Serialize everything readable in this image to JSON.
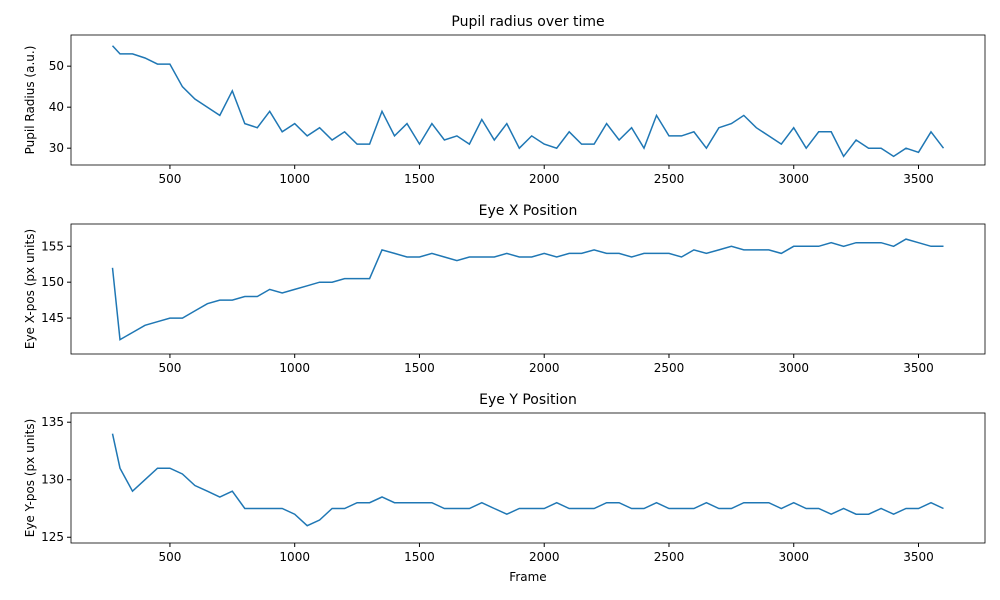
{
  "chart_data": [
    {
      "type": "line",
      "title": "Pupil radius over time",
      "ylabel": "Pupil Radius (a.u.)",
      "x": [
        270,
        300,
        350,
        400,
        450,
        500,
        550,
        600,
        650,
        700,
        750,
        800,
        850,
        900,
        950,
        1000,
        1050,
        1100,
        1150,
        1200,
        1250,
        1300,
        1350,
        1400,
        1450,
        1500,
        1550,
        1600,
        1650,
        1700,
        1750,
        1800,
        1850,
        1900,
        1950,
        2000,
        2050,
        2100,
        2150,
        2200,
        2250,
        2300,
        2350,
        2400,
        2450,
        2500,
        2550,
        2600,
        2650,
        2700,
        2750,
        2800,
        2850,
        2900,
        2950,
        3000,
        3050,
        3100,
        3150,
        3200,
        3250,
        3300,
        3350,
        3400,
        3450,
        3500,
        3550,
        3600
      ],
      "values": [
        55,
        53,
        53,
        52,
        50.5,
        50.5,
        45,
        42,
        40,
        38,
        44,
        36,
        35,
        39,
        34,
        36,
        33,
        35,
        32,
        34,
        31,
        31,
        39,
        33,
        36,
        31,
        36,
        32,
        33,
        31,
        37,
        32,
        36,
        30,
        33,
        31,
        30,
        34,
        31,
        31,
        36,
        32,
        35,
        30,
        38,
        33,
        33,
        34,
        30,
        35,
        36,
        38,
        35,
        33,
        31,
        35,
        30,
        34,
        34,
        28,
        32,
        30,
        30,
        28,
        30,
        29,
        34,
        30
      ],
      "color": "#1f77b4",
      "xlim": [
        103.5,
        3766.5
      ],
      "xticks": [
        500,
        1000,
        1500,
        2000,
        2500,
        3000,
        3500
      ],
      "ylim": [
        25.9,
        57.6
      ],
      "yticks": [
        30,
        40,
        50
      ]
    },
    {
      "type": "line",
      "title": "Eye X Position",
      "ylabel": "Eye X-pos (px units)",
      "x": [
        270,
        300,
        350,
        400,
        450,
        500,
        550,
        600,
        650,
        700,
        750,
        800,
        850,
        900,
        950,
        1000,
        1050,
        1100,
        1150,
        1200,
        1250,
        1300,
        1350,
        1400,
        1450,
        1500,
        1550,
        1600,
        1650,
        1700,
        1750,
        1800,
        1850,
        1900,
        1950,
        2000,
        2050,
        2100,
        2150,
        2200,
        2250,
        2300,
        2350,
        2400,
        2450,
        2500,
        2550,
        2600,
        2650,
        2700,
        2750,
        2800,
        2850,
        2900,
        2950,
        3000,
        3050,
        3100,
        3150,
        3200,
        3250,
        3300,
        3350,
        3400,
        3450,
        3500,
        3550,
        3600
      ],
      "values": [
        152,
        142,
        143,
        144,
        144.5,
        145,
        145,
        146,
        147,
        147.5,
        147.5,
        148,
        148,
        149,
        148.5,
        149,
        149.5,
        150,
        150,
        150.5,
        150.5,
        150.5,
        154.5,
        154,
        153.5,
        153.5,
        154,
        153.5,
        153,
        153.5,
        153.5,
        153.5,
        154,
        153.5,
        153.5,
        154,
        153.5,
        154,
        154,
        154.5,
        154,
        154,
        153.5,
        154,
        154,
        154,
        153.5,
        154.5,
        154,
        154.5,
        155,
        154.5,
        154.5,
        154.5,
        154,
        155,
        155,
        155,
        155.5,
        155,
        155.5,
        155.5,
        155.5,
        155,
        156,
        155.5,
        155,
        155
      ],
      "color": "#1f77b4",
      "xlim": [
        103.5,
        3766.5
      ],
      "xticks": [
        500,
        1000,
        1500,
        2000,
        2500,
        3000,
        3500
      ],
      "ylim": [
        140,
        158.1
      ],
      "yticks": [
        145,
        150,
        155
      ]
    },
    {
      "type": "line",
      "title": "Eye Y Position",
      "ylabel": "Eye Y-pos (px units)",
      "xlabel": "Frame",
      "x": [
        270,
        300,
        350,
        400,
        450,
        500,
        550,
        600,
        650,
        700,
        750,
        800,
        850,
        900,
        950,
        1000,
        1050,
        1100,
        1150,
        1200,
        1250,
        1300,
        1350,
        1400,
        1450,
        1500,
        1550,
        1600,
        1650,
        1700,
        1750,
        1800,
        1850,
        1900,
        1950,
        2000,
        2050,
        2100,
        2150,
        2200,
        2250,
        2300,
        2350,
        2400,
        2450,
        2500,
        2550,
        2600,
        2650,
        2700,
        2750,
        2800,
        2850,
        2900,
        2950,
        3000,
        3050,
        3100,
        3150,
        3200,
        3250,
        3300,
        3350,
        3400,
        3450,
        3500,
        3550,
        3600
      ],
      "values": [
        134,
        131,
        129,
        130,
        131,
        131,
        130.5,
        129.5,
        129,
        128.5,
        129,
        127.5,
        127.5,
        127.5,
        127.5,
        127,
        126,
        126.5,
        127.5,
        127.5,
        128,
        128,
        128.5,
        128,
        128,
        128,
        128,
        127.5,
        127.5,
        127.5,
        128,
        127.5,
        127,
        127.5,
        127.5,
        127.5,
        128,
        127.5,
        127.5,
        127.5,
        128,
        128,
        127.5,
        127.5,
        128,
        127.5,
        127.5,
        127.5,
        128,
        127.5,
        127.5,
        128,
        128,
        128,
        127.5,
        128,
        127.5,
        127.5,
        127,
        127.5,
        127,
        127,
        127.5,
        127,
        127.5,
        127.5,
        128,
        127.5
      ],
      "color": "#1f77b4",
      "xlim": [
        103.5,
        3766.5
      ],
      "xticks": [
        500,
        1000,
        1500,
        2000,
        2500,
        3000,
        3500
      ],
      "ylim": [
        124.5,
        135.8
      ],
      "yticks": [
        125,
        130,
        135
      ]
    }
  ]
}
